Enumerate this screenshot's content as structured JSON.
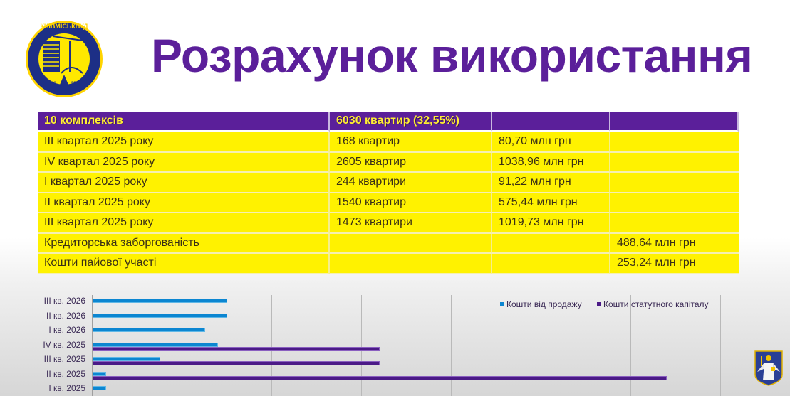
{
  "logo": {
    "text": "КИЇВМІСЬКБУД",
    "year_left": "19",
    "year_right": "55"
  },
  "title": "Розрахунок використання",
  "table": {
    "header": [
      "10 комплексів",
      "6030 квартир (32,55%)",
      "",
      ""
    ],
    "rows": [
      [
        "III квартал 2025 року",
        "168 квартир",
        "80,70 млн грн",
        ""
      ],
      [
        "IV квартал 2025 року",
        "2605 квартир",
        "1038,96 млн грн",
        ""
      ],
      [
        "I квартал 2025 року",
        "244 квартири",
        "91,22 млн грн",
        ""
      ],
      [
        "II квартал 2025 року",
        "1540 квартир",
        "575,44 млн грн",
        ""
      ],
      [
        "III квартал 2025 року",
        "1473 квартири",
        "1019,73 млн грн",
        ""
      ],
      [
        "Кредиторська заборгованість",
        "",
        "",
        "488,64 млн грн"
      ],
      [
        "Кошти пайової участі",
        "",
        "",
        "253,24 млн грн"
      ]
    ]
  },
  "colors": {
    "header_bg": "#5b1f9a",
    "header_text": "#ffee33",
    "row_bg": "#fff200",
    "series_sales": "#0c86d1",
    "series_capital": "#4b1a87"
  },
  "chart_data": {
    "type": "bar",
    "orientation": "horizontal",
    "title": "",
    "xlabel": "",
    "ylabel": "",
    "categories": [
      "III кв. 2026",
      "II кв. 2026",
      "I кв. 2026",
      "IV кв. 2025",
      "III кв. 2025",
      "II кв. 2025",
      "I кв. 2025"
    ],
    "series": [
      {
        "name": "Кошти від продажу",
        "color": "#0c86d1",
        "values": [
          1.5,
          1.5,
          1.25,
          1.4,
          0.75,
          0.15,
          0.15
        ]
      },
      {
        "name": "Кошти статутного капіталу",
        "color": "#4b1a87",
        "values": [
          0,
          0,
          0,
          3.2,
          3.2,
          6.4,
          0
        ]
      }
    ],
    "xlim": [
      0,
      7
    ],
    "grid": true,
    "legend_position": "top-right",
    "note": "x-axis tick labels not visible; values estimated in gridline units"
  }
}
